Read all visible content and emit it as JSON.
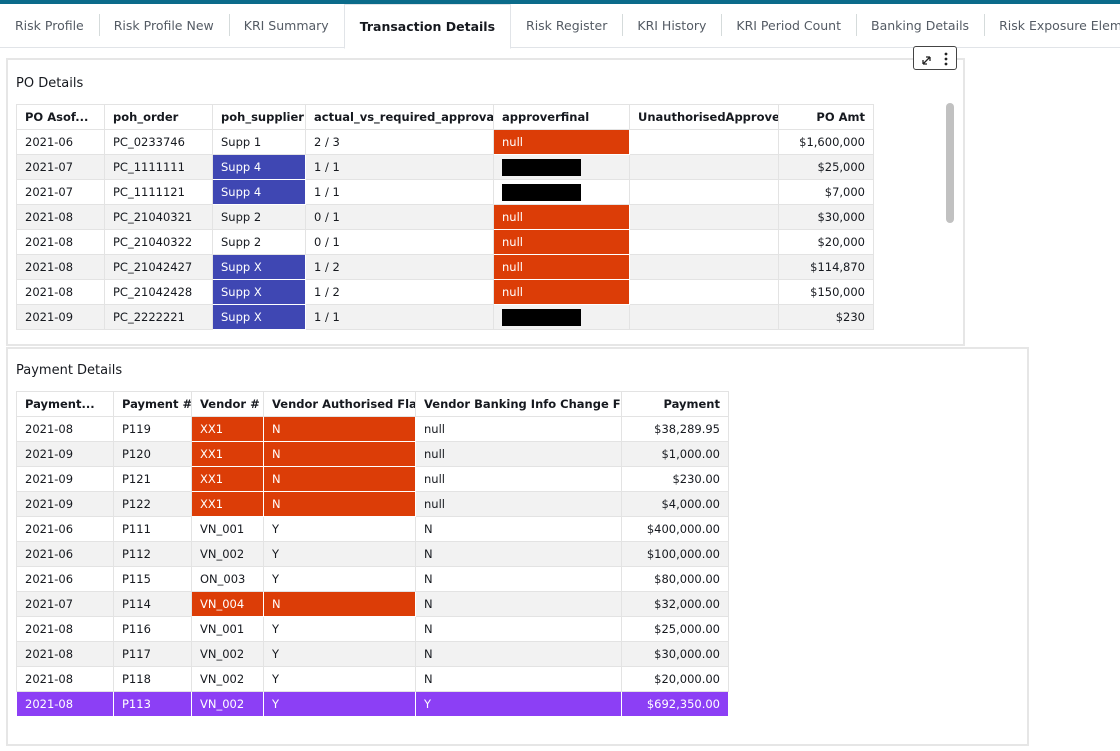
{
  "tabs": {
    "items": [
      "Risk Profile",
      "Risk Profile New",
      "KRI Summary",
      "Transaction Details",
      "Risk Register",
      "KRI History",
      "KRI Period Count",
      "Banking Details",
      "Risk Exposure Elements"
    ],
    "active": 3
  },
  "po_details": {
    "title": "PO Details",
    "columns": [
      "PO Asof...",
      "poh_order",
      "poh_supplier",
      "actual_vs_required_approvals",
      "approverfinal",
      "UnauthorisedApprover",
      "PO Amt"
    ],
    "rows": [
      [
        "2021-06",
        "PC_0233746",
        "Supp 1",
        "2 / 3",
        {
          "text": "null",
          "fill": "#dc3d07"
        },
        null,
        "$1,600,000"
      ],
      [
        "2021-07",
        "PC_1111111",
        {
          "text": "Supp 4",
          "fill": "#3f47b3"
        },
        "1 / 1",
        {
          "text": null,
          "fill": "#000000"
        },
        null,
        "$25,000"
      ],
      [
        "2021-07",
        "PC_1111121",
        {
          "text": "Supp 4",
          "fill": "#3f47b3"
        },
        "1 / 1",
        {
          "text": null,
          "fill": "#000000"
        },
        null,
        "$7,000"
      ],
      [
        "2021-08",
        "PC_21040321",
        "Supp 2",
        "0 / 1",
        {
          "text": "null",
          "fill": "#dc3d07"
        },
        null,
        "$30,000"
      ],
      [
        "2021-08",
        "PC_21040322",
        "Supp 2",
        "0 / 1",
        {
          "text": "null",
          "fill": "#dc3d07"
        },
        null,
        "$20,000"
      ],
      [
        "2021-08",
        "PC_21042427",
        {
          "text": "Supp X",
          "fill": "#3f47b3"
        },
        "1 / 2",
        {
          "text": "null",
          "fill": "#dc3d07"
        },
        null,
        "$114,870"
      ],
      [
        "2021-08",
        "PC_21042428",
        {
          "text": "Supp X",
          "fill": "#3f47b3"
        },
        "1 / 2",
        {
          "text": "null",
          "fill": "#dc3d07"
        },
        null,
        "$150,000"
      ],
      [
        "2021-09",
        "PC_2222221",
        {
          "text": "Supp X",
          "fill": "#3f47b3"
        },
        "1 / 1",
        {
          "text": null,
          "fill": "#000000"
        },
        null,
        "$230"
      ]
    ]
  },
  "payment_details": {
    "title": "Payment Details",
    "columns": [
      "Payment...",
      "Payment #",
      "Vendor #",
      "Vendor Authorised Flag",
      "Vendor Banking Info Change Flag",
      "Payment"
    ],
    "rows": [
      [
        "2021-08",
        "P119",
        {
          "text": "XX1",
          "fill": "#dc3d07"
        },
        {
          "text": "N",
          "fill": "#dc3d07"
        },
        "null",
        "$38,289.95"
      ],
      [
        "2021-09",
        "P120",
        {
          "text": "XX1",
          "fill": "#dc3d07"
        },
        {
          "text": "N",
          "fill": "#dc3d07"
        },
        "null",
        "$1,000.00"
      ],
      [
        "2021-09",
        "P121",
        {
          "text": "XX1",
          "fill": "#dc3d07"
        },
        {
          "text": "N",
          "fill": "#dc3d07"
        },
        "null",
        "$230.00"
      ],
      [
        "2021-09",
        "P122",
        {
          "text": "XX1",
          "fill": "#dc3d07"
        },
        {
          "text": "N",
          "fill": "#dc3d07"
        },
        "null",
        "$4,000.00"
      ],
      [
        "2021-06",
        "P111",
        "VN_001",
        "Y",
        "N",
        "$400,000.00"
      ],
      [
        "2021-06",
        "P112",
        "VN_002",
        "Y",
        "N",
        "$100,000.00"
      ],
      [
        "2021-06",
        "P115",
        "ON_003",
        "Y",
        "N",
        "$80,000.00"
      ],
      [
        "2021-07",
        "P114",
        {
          "text": "VN_004",
          "fill": "#dc3d07"
        },
        {
          "text": "N",
          "fill": "#dc3d07"
        },
        "N",
        "$32,000.00"
      ],
      [
        "2021-08",
        "P116",
        "VN_001",
        "Y",
        "N",
        "$25,000.00"
      ],
      [
        "2021-08",
        "P117",
        "VN_002",
        "Y",
        "N",
        "$30,000.00"
      ],
      [
        "2021-08",
        "P118",
        "VN_002",
        "Y",
        "N",
        "$20,000.00"
      ],
      [
        {
          "text": "2021-08",
          "fill": "#8c3ff5"
        },
        {
          "text": "P113",
          "fill": "#8c3ff5"
        },
        {
          "text": "VN_002",
          "fill": "#8c3ff5"
        },
        {
          "text": "Y",
          "fill": "#8c3ff5"
        },
        {
          "text": "Y",
          "fill": "#8c3ff5"
        },
        {
          "text": "$692,350.00",
          "fill": "#8c3ff5"
        }
      ]
    ]
  }
}
